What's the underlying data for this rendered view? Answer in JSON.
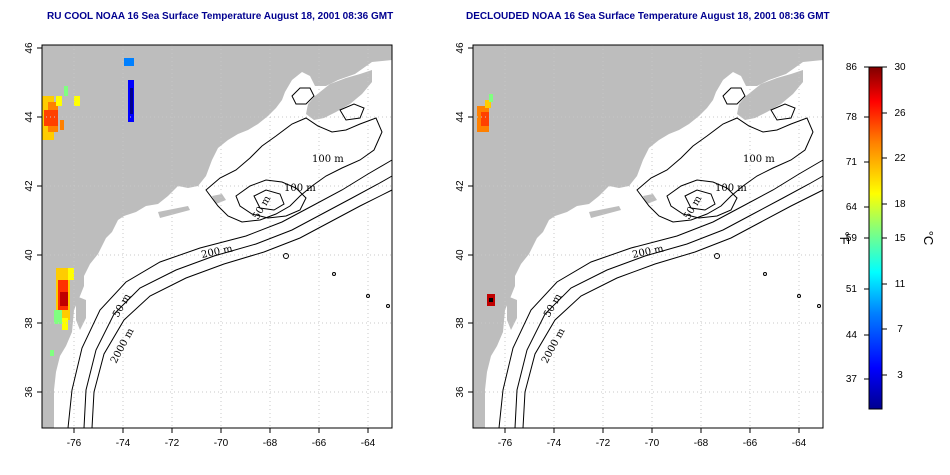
{
  "panels": [
    {
      "title": "RU COOL NOAA 16 Sea Surface Temperature August 18, 2001 08:36 GMT",
      "contour_labels": [
        "100 m",
        "100 m",
        "50 m",
        "200 m",
        "50 m",
        "2000 m"
      ]
    },
    {
      "title": "DECLOUDED NOAA 16 Sea Surface Temperature August 18, 2001 08:36 GMT",
      "contour_labels": [
        "100 m",
        "100 m",
        "50 m",
        "200 m",
        "50 m",
        "2000 m"
      ]
    }
  ],
  "axes": {
    "lon_ticks": [
      "-76",
      "-74",
      "-72",
      "-70",
      "-68",
      "-66",
      "-64"
    ],
    "lat_ticks": [
      "46",
      "44",
      "42",
      "40",
      "38",
      "36"
    ]
  },
  "colorbar": {
    "fahrenheit_ticks": [
      "86",
      "78",
      "71",
      "64",
      "59",
      "51",
      "44",
      "37"
    ],
    "celsius_ticks": [
      "30",
      "26",
      "22",
      "18",
      "15",
      "11",
      "7",
      "3"
    ],
    "left_unit": "°F",
    "right_unit": "°C",
    "colors": [
      "#00008f",
      "#0000ff",
      "#0080ff",
      "#00ffff",
      "#80ff80",
      "#ffff00",
      "#ff8000",
      "#ff0000",
      "#800000"
    ]
  },
  "colors": {
    "land": "#bdbdbd",
    "water": "#ffffff",
    "title": "#000090"
  }
}
